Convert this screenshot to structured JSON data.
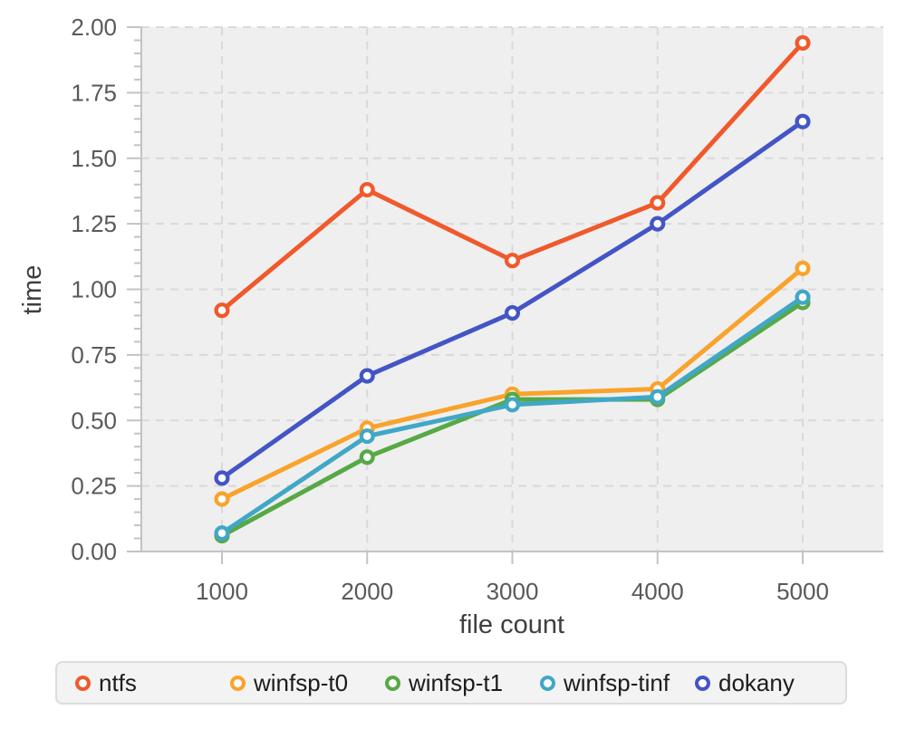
{
  "chart_data": {
    "type": "line",
    "title": "",
    "xlabel": "file count",
    "ylabel": "time",
    "x": [
      1000,
      2000,
      3000,
      4000,
      5000
    ],
    "x_tick_labels": [
      "1000",
      "2000",
      "3000",
      "4000",
      "5000"
    ],
    "y_ticks": [
      0.0,
      0.25,
      0.5,
      0.75,
      1.0,
      1.25,
      1.5,
      1.75,
      2.0
    ],
    "y_tick_labels": [
      "0.00",
      "0.25",
      "0.50",
      "0.75",
      "1.00",
      "1.25",
      "1.50",
      "1.75",
      "2.00"
    ],
    "y_minor_step": 0.05,
    "xlim": [
      437,
      5563
    ],
    "ylim": [
      0,
      2.0
    ],
    "grid": "dashed",
    "marker": "open-circle",
    "legend_position": "bottom",
    "series": [
      {
        "name": "ntfs",
        "color": "#f0592c",
        "values": [
          0.92,
          1.38,
          1.11,
          1.33,
          1.94
        ]
      },
      {
        "name": "winfsp-t0",
        "color": "#f9a32c",
        "values": [
          0.2,
          0.47,
          0.6,
          0.62,
          1.08
        ]
      },
      {
        "name": "winfsp-t1",
        "color": "#57a946",
        "values": [
          0.06,
          0.36,
          0.58,
          0.58,
          0.95
        ]
      },
      {
        "name": "winfsp-tinf",
        "color": "#41a7c6",
        "values": [
          0.07,
          0.44,
          0.56,
          0.59,
          0.97
        ]
      },
      {
        "name": "dokany",
        "color": "#4355c6",
        "values": [
          0.28,
          0.67,
          0.91,
          1.25,
          1.64
        ]
      }
    ]
  },
  "style": {
    "background": "#ffffff",
    "plot_background": "#efefef",
    "grid_color": "#d9d9d9",
    "axis_color": "#c3c3c3",
    "tick_label_color": "#595959",
    "axis_title_color": "#3f3f3f",
    "legend_background": "#f3f3f3",
    "legend_border": "#dcdcdc",
    "legend_text": "#1c1c1c"
  }
}
